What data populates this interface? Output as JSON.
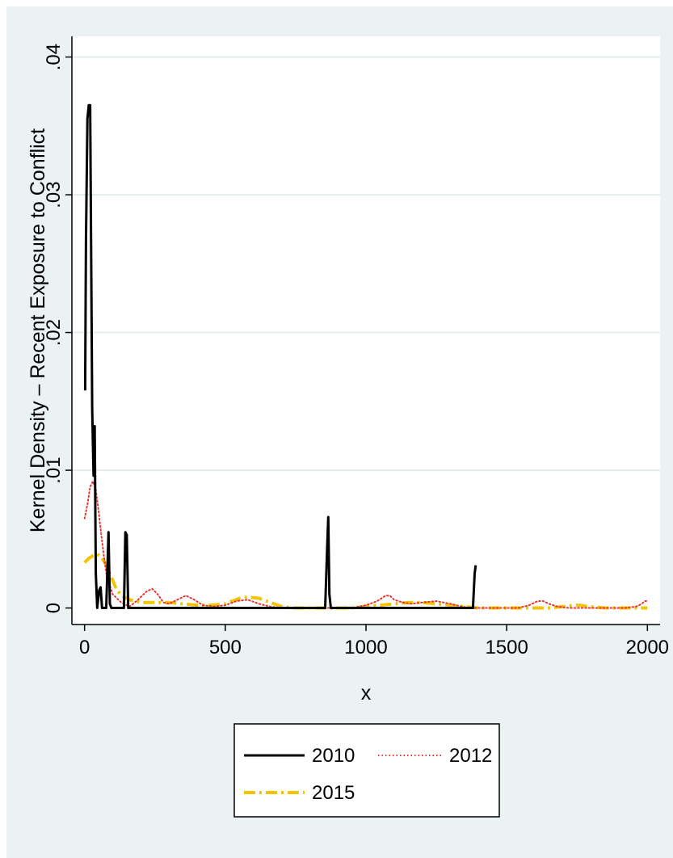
{
  "chart_data": {
    "type": "line",
    "title": "",
    "xlabel": "x",
    "ylabel": "Kernel Density – Recent Exposure to  Conflict",
    "xlim": [
      -45,
      2045
    ],
    "ylim": [
      -0.0012,
      0.0415
    ],
    "x_ticks": [
      0,
      500,
      1000,
      1500,
      2000
    ],
    "x_tick_labels": [
      "0",
      "500",
      "1000",
      "1500",
      "2000"
    ],
    "y_ticks": [
      0,
      0.01,
      0.02,
      0.03,
      0.04
    ],
    "y_tick_labels": [
      "0",
      ".01",
      ".02",
      ".03",
      ".04"
    ],
    "grid": true,
    "legend_position": "bottom",
    "series": [
      {
        "name": "2010",
        "color": "#000000",
        "style": "solid",
        "x": [
          2,
          5,
          10,
          15,
          20,
          27,
          32,
          36,
          40,
          45,
          52,
          57,
          62,
          67,
          72,
          77,
          85,
          90,
          95,
          100,
          105,
          140,
          145,
          150,
          155,
          160,
          165,
          200,
          300,
          400,
          500,
          600,
          700,
          800,
          855,
          862,
          866,
          870,
          875,
          880,
          900,
          1000,
          1100,
          1200,
          1300,
          1380,
          1386,
          1390
        ],
        "y": [
          0.0158,
          0.0266,
          0.0355,
          0.0365,
          0.0365,
          0.0145,
          0.0096,
          0.0132,
          0.0025,
          0.0,
          0.0013,
          0.0015,
          0.0,
          0.0,
          0.0,
          0.0,
          0.0055,
          0.0003,
          0.0,
          0.0,
          0.0,
          0.0,
          0.0055,
          0.0053,
          0.0,
          0.0,
          0.0,
          0.0,
          0.0,
          0.0,
          0.0,
          0.0,
          0.0,
          0.0,
          0.0,
          0.0043,
          0.0066,
          0.001,
          0.0,
          0.0,
          0.0,
          0.0,
          0.0,
          0.0,
          0.0,
          0.0,
          0.0025,
          0.0031
        ]
      },
      {
        "name": "2012",
        "color": "#e8362f",
        "style": "dotted",
        "x": [
          0,
          10,
          20,
          30,
          40,
          50,
          60,
          70,
          80,
          100,
          130,
          160,
          190,
          220,
          240,
          260,
          280,
          300,
          330,
          360,
          390,
          420,
          460,
          500,
          540,
          580,
          620,
          660,
          700,
          740,
          800,
          860,
          900,
          950,
          1000,
          1040,
          1070,
          1085,
          1100,
          1130,
          1160,
          1200,
          1250,
          1300,
          1340,
          1380,
          1420,
          1460,
          1500,
          1540,
          1580,
          1610,
          1630,
          1650,
          1680,
          1720,
          1760,
          1800,
          1840,
          1880,
          1920,
          1960,
          1980,
          1990,
          2000
        ],
        "y": [
          0.0065,
          0.0075,
          0.0088,
          0.0092,
          0.0086,
          0.007,
          0.0052,
          0.0035,
          0.0022,
          0.001,
          0.0004,
          0.0001,
          0.0006,
          0.0012,
          0.0014,
          0.001,
          0.0004,
          0.0003,
          0.0006,
          0.0009,
          0.0006,
          0.0002,
          0.0001,
          0.0002,
          0.0005,
          0.0006,
          0.0003,
          0.0001,
          0.0,
          0.0,
          0.0,
          0.0,
          0.0,
          0.0,
          0.0002,
          0.0005,
          0.0009,
          0.0009,
          0.0006,
          0.0004,
          0.0003,
          0.0004,
          0.0005,
          0.0003,
          0.0001,
          0.0,
          0.0,
          0.0,
          0.0,
          0.0,
          0.0002,
          0.0005,
          0.0005,
          0.0003,
          0.0001,
          0.0,
          0.0,
          0.0,
          0.0,
          0.0,
          0.0,
          0.0001,
          0.0003,
          0.0005,
          0.0005
        ]
      },
      {
        "name": "2015",
        "color": "#f5c400",
        "style": "dash-dot",
        "x": [
          0,
          15,
          30,
          45,
          60,
          75,
          90,
          110,
          130,
          160,
          200,
          250,
          300,
          350,
          400,
          450,
          500,
          550,
          580,
          620,
          660,
          700,
          740,
          800,
          860,
          900,
          950,
          1000,
          1050,
          1100,
          1150,
          1200,
          1250,
          1300,
          1350,
          1400,
          1450,
          1500,
          1550,
          1600,
          1650,
          1700,
          1740,
          1760,
          1790,
          1850,
          1900,
          1950,
          2000
        ],
        "y": [
          0.0033,
          0.0036,
          0.0038,
          0.0039,
          0.0037,
          0.0032,
          0.0025,
          0.0015,
          0.0009,
          0.0006,
          0.0004,
          0.0004,
          0.0004,
          0.0003,
          0.0002,
          0.0002,
          0.0003,
          0.0007,
          0.0008,
          0.0007,
          0.0004,
          0.0001,
          0.0,
          0.0,
          0.0,
          0.0,
          0.0,
          0.0001,
          0.0002,
          0.0003,
          0.0004,
          0.0004,
          0.0003,
          0.0002,
          0.0001,
          0.0,
          0.0,
          0.0,
          0.0,
          0.0,
          0.0,
          0.0001,
          0.0002,
          0.0002,
          0.0001,
          0.0,
          0.0,
          0.0,
          0.0
        ]
      }
    ]
  }
}
